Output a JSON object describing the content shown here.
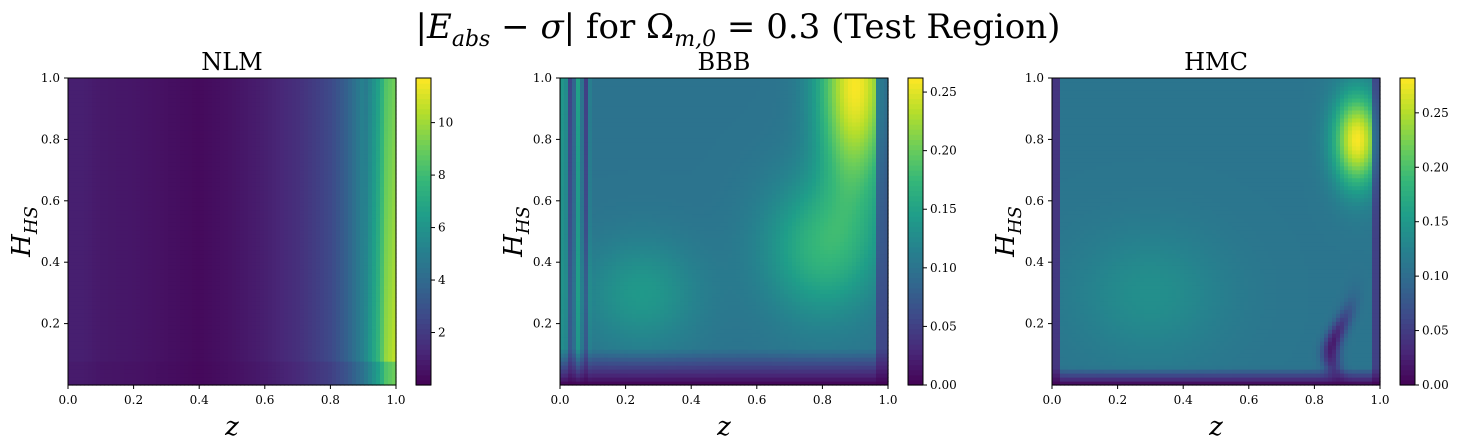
{
  "figure": {
    "title": "|E_abs − σ| for Ω_m,0 = 0.3 (Test Region)",
    "colormap": "viridis",
    "colormap_stops": [
      "#440154",
      "#482878",
      "#3e4989",
      "#31688e",
      "#26828e",
      "#1f9e89",
      "#35b779",
      "#6ece58",
      "#b5de2b",
      "#fde725"
    ]
  },
  "chart_data": [
    {
      "type": "heatmap",
      "title": "NLM",
      "xlabel": "z",
      "ylabel": "H_HS",
      "xlim": [
        0.0,
        1.0
      ],
      "ylim": [
        0.0,
        1.0
      ],
      "xticks": [
        "0.0",
        "0.2",
        "0.4",
        "0.6",
        "0.8",
        "1.0"
      ],
      "yticks": [
        "0.2",
        "0.4",
        "0.6",
        "0.8",
        "1.0"
      ],
      "colorbar": {
        "range": [
          0,
          11.7
        ],
        "ticks": [
          "2",
          "4",
          "6",
          "8",
          "10"
        ]
      },
      "profile_x": [
        0.0,
        0.05,
        0.1,
        0.2,
        0.3,
        0.4,
        0.5,
        0.6,
        0.7,
        0.8,
        0.85,
        0.9,
        0.95,
        0.97,
        1.0
      ],
      "profile_values": [
        1.0,
        1.0,
        0.8,
        0.7,
        0.5,
        0.3,
        0.6,
        1.0,
        1.6,
        2.6,
        3.6,
        5.2,
        8.0,
        10.0,
        10.8
      ]
    },
    {
      "type": "heatmap",
      "title": "BBB",
      "xlabel": "z",
      "ylabel": "H_HS",
      "xlim": [
        0.0,
        1.0
      ],
      "ylim": [
        0.0,
        1.0
      ],
      "xticks": [
        "0.0",
        "0.2",
        "0.4",
        "0.6",
        "0.8",
        "1.0"
      ],
      "yticks": [
        "0.2",
        "0.4",
        "0.6",
        "0.8",
        "1.0"
      ],
      "colorbar": {
        "range": [
          0,
          0.262
        ],
        "ticks": [
          "0.00",
          "0.05",
          "0.10",
          "0.15",
          "0.20",
          "0.25"
        ]
      },
      "peak": {
        "z": 0.9,
        "H": 0.98,
        "value": 0.26
      },
      "background_value": 0.1
    },
    {
      "type": "heatmap",
      "title": "HMC",
      "xlabel": "z",
      "ylabel": "H_HS",
      "xlim": [
        0.0,
        1.0
      ],
      "ylim": [
        0.0,
        1.0
      ],
      "xticks": [
        "0.0",
        "0.2",
        "0.4",
        "0.6",
        "0.8",
        "1.0"
      ],
      "yticks": [
        "0.2",
        "0.4",
        "0.6",
        "0.8",
        "1.0"
      ],
      "colorbar": {
        "range": [
          0,
          0.282
        ],
        "ticks": [
          "0.00",
          "0.05",
          "0.10",
          "0.15",
          "0.20",
          "0.25"
        ]
      },
      "peak": {
        "z": 0.93,
        "H": 0.8,
        "value": 0.28
      },
      "background_value": 0.11
    }
  ]
}
